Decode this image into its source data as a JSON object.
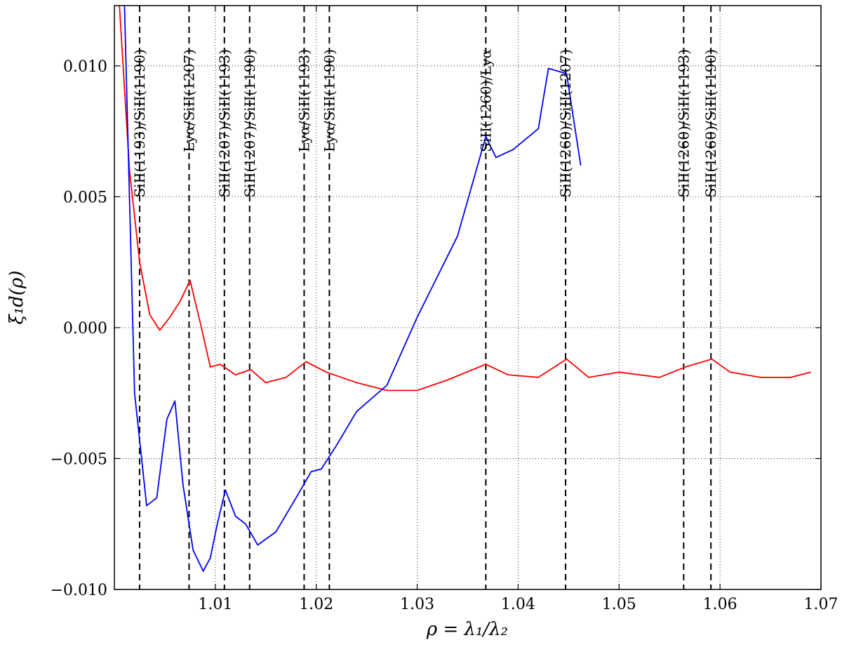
{
  "chart_data": {
    "type": "line",
    "title": "",
    "xlabel": "ρ = λ₁/λ₂",
    "ylabel": "ξ₁d(ρ)",
    "xlim": [
      1.0,
      1.07
    ],
    "ylim": [
      -0.01,
      0.0123
    ],
    "xticks": [
      1.01,
      1.02,
      1.03,
      1.04,
      1.05,
      1.06,
      1.07
    ],
    "xtick_labels": [
      "1.01",
      "1.02",
      "1.03",
      "1.04",
      "1.05",
      "1.06",
      "1.07"
    ],
    "yticks": [
      -0.01,
      -0.005,
      0.0,
      0.005,
      0.01
    ],
    "ytick_labels": [
      "−0.010",
      "−0.005",
      "0.000",
      "0.005",
      "0.010"
    ],
    "grid": true,
    "series": [
      {
        "color": "#ff0000",
        "x": [
          1.0005,
          1.0015,
          1.0025,
          1.0035,
          1.0045,
          1.0055,
          1.0065,
          1.0075,
          1.0085,
          1.0095,
          1.0105,
          1.012,
          1.0135,
          1.015,
          1.017,
          1.019,
          1.021,
          1.024,
          1.027,
          1.03,
          1.033,
          1.0368,
          1.039,
          1.042,
          1.0448,
          1.047,
          1.05,
          1.054,
          1.0566,
          1.0592,
          1.061,
          1.064,
          1.067,
          1.069
        ],
        "y": [
          0.0123,
          0.006,
          0.0025,
          0.0005,
          -0.0001,
          0.0004,
          0.001,
          0.0018,
          0.0002,
          -0.0015,
          -0.0014,
          -0.0018,
          -0.0016,
          -0.0021,
          -0.0019,
          -0.0013,
          -0.0017,
          -0.0021,
          -0.0024,
          -0.0024,
          -0.002,
          -0.0014,
          -0.0018,
          -0.0019,
          -0.0012,
          -0.0019,
          -0.0017,
          -0.0019,
          -0.0015,
          -0.0012,
          -0.0017,
          -0.0019,
          -0.0019,
          -0.0017
        ]
      },
      {
        "color": "#0000ff",
        "x": [
          1.001,
          1.002,
          1.0032,
          1.0042,
          1.0052,
          1.006,
          1.0068,
          1.0078,
          1.0088,
          1.0095,
          1.0102,
          1.011,
          1.012,
          1.013,
          1.0142,
          1.016,
          1.018,
          1.0195,
          1.0205,
          1.022,
          1.024,
          1.027,
          1.03,
          1.034,
          1.0368,
          1.0378,
          1.0395,
          1.042,
          1.043,
          1.0448,
          1.0462
        ],
        "y": [
          0.0123,
          -0.0025,
          -0.0068,
          -0.0065,
          -0.0035,
          -0.0028,
          -0.006,
          -0.0085,
          -0.0093,
          -0.0088,
          -0.0075,
          -0.0062,
          -0.0072,
          -0.0075,
          -0.0083,
          -0.0078,
          -0.0065,
          -0.0055,
          -0.0054,
          -0.0045,
          -0.0032,
          -0.0022,
          0.0004,
          0.0035,
          0.0073,
          0.0065,
          0.0068,
          0.0076,
          0.0099,
          0.0097,
          0.0062
        ]
      }
    ],
    "vlines": [
      {
        "x": 1.0025,
        "label": "SiII(1193)/SiII(1190)"
      },
      {
        "x": 1.0074,
        "label": "Lyα/SiII(1207)"
      },
      {
        "x": 1.0109,
        "label": "SiII(1207)/SiII(1193)"
      },
      {
        "x": 1.0134,
        "label": "SiII(1207)/SiII(1190)"
      },
      {
        "x": 1.0188,
        "label": "Lyα/SiII(1193)"
      },
      {
        "x": 1.0213,
        "label": "Lyα/SiII(1190)"
      },
      {
        "x": 1.0368,
        "label": "SiII(1260)/Lyα"
      },
      {
        "x": 1.0447,
        "label": "SiII(1260)/SiII(1207)"
      },
      {
        "x": 1.0564,
        "label": "SiII(1260)/SiII(1193)"
      },
      {
        "x": 1.0591,
        "label": "SiII(1260)/SiII(1190)"
      }
    ]
  }
}
